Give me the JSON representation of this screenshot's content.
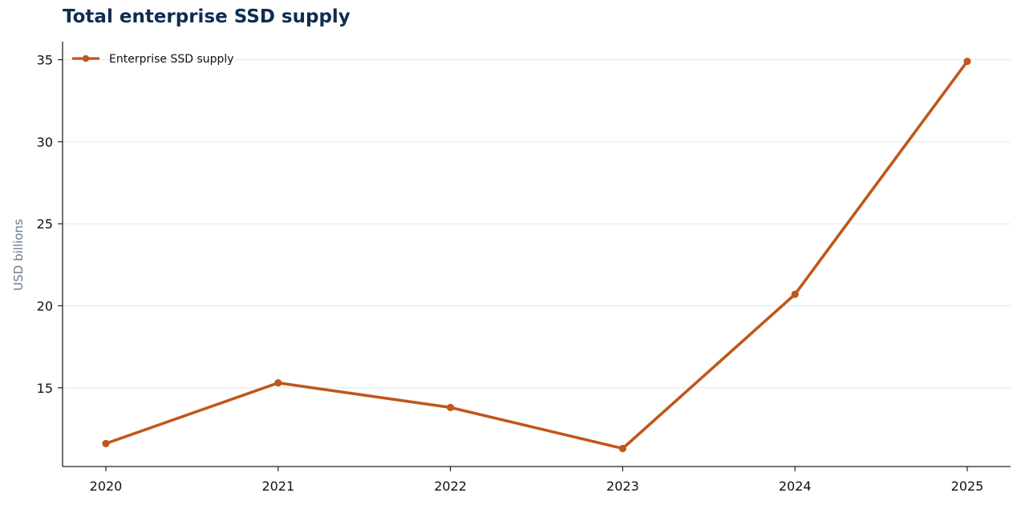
{
  "chart_data": {
    "type": "line",
    "title": "Total enterprise SSD supply",
    "xlabel": "",
    "ylabel": "USD billions",
    "categories": [
      "2020",
      "2021",
      "2022",
      "2023",
      "2024",
      "2025"
    ],
    "series": [
      {
        "name": "Enterprise SSD supply",
        "values": [
          11.6,
          15.3,
          13.8,
          11.3,
          20.7,
          34.9
        ],
        "color": "#c0571b"
      }
    ],
    "yticks": [
      15,
      20,
      25,
      30,
      35
    ],
    "ylim": [
      10.2,
      36.1
    ],
    "grid": "horizontal",
    "legend_position": "top-left",
    "colors": {
      "title": "#0f2d52",
      "grid": "#e8ecf3",
      "axis": "#222222",
      "ylabel": "#6b7a8a"
    }
  }
}
